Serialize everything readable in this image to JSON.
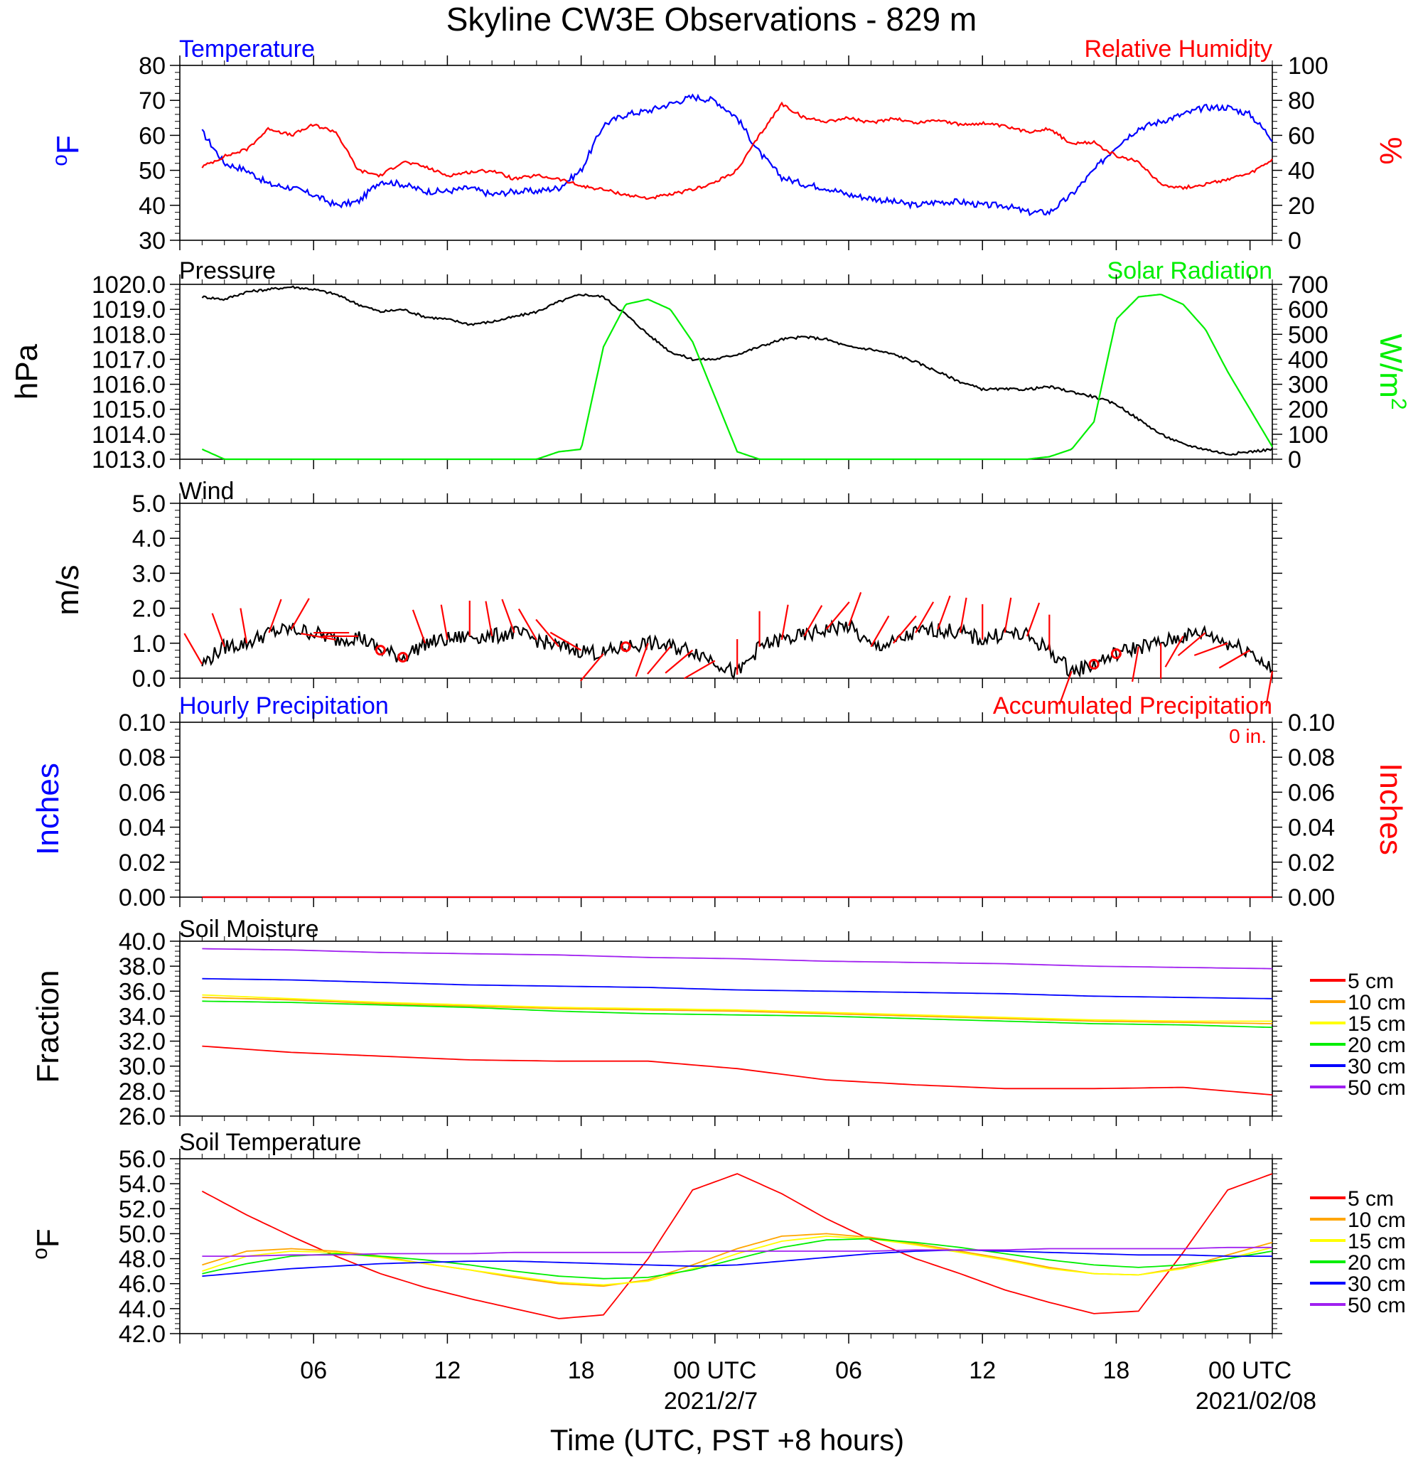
{
  "title": "Skyline CW3E Observations - 829 m",
  "x_axis": {
    "label": "Time (UTC, PST +8 hours)",
    "ticks": [
      "06",
      "12",
      "18",
      "00 UTC",
      "06",
      "12",
      "18",
      "00 UTC"
    ],
    "dates": [
      "2021/2/7",
      "2021/02/08"
    ]
  },
  "colors": {
    "blue": "#0000ff",
    "red": "#ff0000",
    "green": "#00ee00",
    "black": "#000000",
    "orange": "#ffa500",
    "yellow": "#ffff00",
    "purple": "#a020f0"
  },
  "accumulated_total": "0 in.",
  "chart_data": [
    {
      "id": "temp_rh",
      "type": "line",
      "title_left": "Temperature",
      "title_right": "Relative Humidity",
      "ylabel_left": "°F",
      "ylabel_right": "%",
      "ylim_left": [
        30,
        80
      ],
      "ylim_right": [
        0,
        100
      ],
      "yticks_left": [
        "30",
        "40",
        "50",
        "60",
        "70",
        "80"
      ],
      "yticks_right": [
        "0",
        "20",
        "40",
        "60",
        "80",
        "100"
      ],
      "x_hours": [
        1,
        2,
        3,
        4,
        5,
        6,
        7,
        8,
        9,
        10,
        11,
        12,
        13,
        14,
        15,
        16,
        17,
        18,
        19,
        20,
        21,
        22,
        23,
        24,
        25,
        26,
        27,
        28,
        29,
        30,
        31,
        32,
        33,
        34,
        35,
        36,
        37,
        38,
        39,
        40,
        41,
        42,
        43,
        44,
        45,
        46,
        47,
        48,
        49
      ],
      "series": [
        {
          "name": "Temperature",
          "axis": "left",
          "color": "#0000ff",
          "values": [
            61,
            52,
            50,
            46,
            45,
            43,
            40,
            41,
            47,
            46,
            44,
            44,
            45,
            43,
            44,
            44,
            45,
            50,
            63,
            66,
            67,
            69,
            71,
            70,
            65,
            55,
            48,
            46,
            45,
            43,
            42,
            41,
            40,
            41,
            41,
            40,
            40,
            38,
            38,
            43,
            50,
            57,
            62,
            64,
            66,
            68,
            68,
            66,
            59
          ]
        },
        {
          "name": "Relative Humidity",
          "axis": "right",
          "color": "#ff0000",
          "values": [
            42,
            48,
            52,
            64,
            60,
            66,
            62,
            40,
            37,
            45,
            42,
            37,
            39,
            40,
            35,
            37,
            35,
            31,
            29,
            26,
            24,
            26,
            29,
            33,
            40,
            60,
            78,
            70,
            68,
            70,
            67,
            70,
            67,
            69,
            66,
            67,
            65,
            62,
            64,
            55,
            56,
            48,
            45,
            32,
            30,
            32,
            35,
            38,
            46
          ]
        }
      ]
    },
    {
      "id": "pressure_solar",
      "type": "line",
      "title_left": "Pressure",
      "title_right": "Solar Radiation",
      "ylabel_left": "hPa",
      "ylabel_right": "W/m",
      "ylabel_right_sup": "2",
      "ylim_left": [
        1013,
        1020
      ],
      "ylim_right": [
        0,
        700
      ],
      "yticks_left": [
        "1013.0",
        "1014.0",
        "1015.0",
        "1016.0",
        "1017.0",
        "1018.0",
        "1019.0",
        "1020.0"
      ],
      "yticks_right": [
        "0",
        "100",
        "200",
        "300",
        "400",
        "500",
        "600",
        "700"
      ],
      "x_hours": [
        1,
        2,
        3,
        4,
        5,
        6,
        7,
        8,
        9,
        10,
        11,
        12,
        13,
        14,
        15,
        16,
        17,
        18,
        19,
        20,
        21,
        22,
        23,
        24,
        25,
        26,
        27,
        28,
        29,
        30,
        31,
        32,
        33,
        34,
        35,
        36,
        37,
        38,
        39,
        40,
        41,
        42,
        43,
        44,
        45,
        46,
        47,
        48,
        49
      ],
      "series": [
        {
          "name": "Pressure",
          "axis": "left",
          "color": "#000000",
          "values": [
            1019.5,
            1019.4,
            1019.7,
            1019.8,
            1019.9,
            1019.8,
            1019.6,
            1019.2,
            1018.9,
            1019.0,
            1018.7,
            1018.6,
            1018.4,
            1018.5,
            1018.7,
            1018.9,
            1019.3,
            1019.6,
            1019.5,
            1018.8,
            1018.0,
            1017.3,
            1017.0,
            1017.0,
            1017.2,
            1017.5,
            1017.8,
            1017.9,
            1017.8,
            1017.5,
            1017.4,
            1017.2,
            1016.9,
            1016.5,
            1016.1,
            1015.8,
            1015.8,
            1015.8,
            1015.9,
            1015.7,
            1015.5,
            1015.2,
            1014.6,
            1014.0,
            1013.6,
            1013.4,
            1013.2,
            1013.3,
            1013.4
          ]
        },
        {
          "name": "Solar Radiation",
          "axis": "right",
          "color": "#00ee00",
          "values": [
            40,
            0,
            0,
            0,
            0,
            0,
            0,
            0,
            0,
            0,
            0,
            0,
            0,
            0,
            0,
            0,
            30,
            40,
            450,
            620,
            640,
            600,
            470,
            250,
            30,
            0,
            0,
            0,
            0,
            0,
            0,
            0,
            0,
            0,
            0,
            0,
            0,
            0,
            10,
            40,
            150,
            560,
            650,
            660,
            620,
            520,
            350,
            200,
            50
          ]
        }
      ]
    },
    {
      "id": "wind",
      "type": "line",
      "title_left": "Wind",
      "ylabel_left": "m/s",
      "ylim_left": [
        0,
        5
      ],
      "yticks_left": [
        "0.0",
        "1.0",
        "2.0",
        "3.0",
        "4.0",
        "5.0"
      ],
      "x_hours": [
        1,
        2,
        3,
        4,
        5,
        6,
        7,
        8,
        9,
        10,
        11,
        12,
        13,
        14,
        15,
        16,
        17,
        18,
        19,
        20,
        21,
        22,
        23,
        24,
        25,
        26,
        27,
        28,
        29,
        30,
        31,
        32,
        33,
        34,
        35,
        36,
        37,
        38,
        39,
        40,
        41,
        42,
        43,
        44,
        45,
        46,
        47,
        48,
        49
      ],
      "series": [
        {
          "name": "Wind",
          "axis": "left",
          "color": "#000000",
          "values": [
            0.4,
            0.9,
            1.0,
            1.3,
            1.4,
            1.3,
            1.1,
            1.2,
            0.8,
            0.6,
            1.0,
            1.1,
            1.2,
            1.2,
            1.3,
            1.1,
            0.9,
            0.8,
            0.7,
            0.9,
            1.0,
            0.9,
            0.8,
            0.5,
            0.1,
            0.9,
            1.1,
            1.2,
            1.4,
            1.5,
            0.9,
            1.0,
            1.3,
            1.4,
            1.3,
            1.1,
            1.3,
            1.2,
            0.8,
            0.2,
            0.4,
            0.7,
            0.9,
            1.0,
            1.2,
            1.3,
            1.0,
            0.8,
            0.2
          ]
        }
      ],
      "calm_hours": [
        9,
        10,
        20,
        41,
        42
      ],
      "barb_direction_deg": [
        330,
        340,
        350,
        20,
        30,
        90,
        280,
        270,
        300,
        330,
        340,
        350,
        0,
        350,
        340,
        330,
        320,
        300,
        220,
        210,
        200,
        220,
        230,
        240,
        0,
        0,
        10,
        30,
        40,
        20,
        30,
        40,
        30,
        20,
        10,
        0,
        10,
        20,
        0,
        200,
        210,
        200,
        190,
        180,
        210,
        230,
        250,
        240,
        190
      ]
    },
    {
      "id": "precip",
      "type": "line",
      "title_left": "Hourly Precipitation",
      "title_right": "Accumulated Precipitation",
      "ylabel_left": "Inches",
      "ylabel_right": "Inches",
      "ylim_left": [
        0,
        0.1
      ],
      "ylim_right": [
        0,
        0.1
      ],
      "yticks_left": [
        "0.00",
        "0.02",
        "0.04",
        "0.06",
        "0.08",
        "0.10"
      ],
      "yticks_right": [
        "0.00",
        "0.02",
        "0.04",
        "0.06",
        "0.08",
        "0.10"
      ],
      "x_hours": [
        1,
        49
      ],
      "series": [
        {
          "name": "Hourly Precipitation",
          "axis": "left",
          "color": "#0000ff",
          "values": [
            0,
            0
          ]
        },
        {
          "name": "Accumulated Precipitation",
          "axis": "right",
          "color": "#ff0000",
          "values": [
            0,
            0
          ]
        }
      ]
    },
    {
      "id": "soil_moisture",
      "type": "line",
      "title_left": "Soil Moisture",
      "ylabel_left": "Fraction",
      "ylim_left": [
        26,
        40
      ],
      "yticks_left": [
        "26.0",
        "28.0",
        "30.0",
        "32.0",
        "34.0",
        "36.0",
        "38.0",
        "40.0"
      ],
      "x_hours": [
        1,
        5,
        9,
        13,
        17,
        21,
        25,
        29,
        33,
        37,
        41,
        45,
        49
      ],
      "series": [
        {
          "name": "5 cm",
          "color": "#ff0000",
          "values": [
            31.6,
            31.1,
            30.8,
            30.5,
            30.4,
            30.4,
            29.8,
            28.9,
            28.5,
            28.2,
            28.2,
            28.3,
            27.7
          ]
        },
        {
          "name": "10 cm",
          "color": "#ffa500",
          "values": [
            35.5,
            35.3,
            35.0,
            34.8,
            34.6,
            34.5,
            34.4,
            34.2,
            34.0,
            33.8,
            33.6,
            33.5,
            33.4
          ]
        },
        {
          "name": "15 cm",
          "color": "#ffff00",
          "values": [
            35.7,
            35.4,
            35.1,
            34.9,
            34.7,
            34.6,
            34.5,
            34.3,
            34.1,
            33.9,
            33.7,
            33.6,
            33.6
          ]
        },
        {
          "name": "20 cm",
          "color": "#00ee00",
          "values": [
            35.2,
            35.1,
            34.9,
            34.7,
            34.4,
            34.2,
            34.1,
            34.0,
            33.8,
            33.6,
            33.4,
            33.3,
            33.1
          ]
        },
        {
          "name": "30 cm",
          "color": "#0000ff",
          "values": [
            37.0,
            36.9,
            36.7,
            36.5,
            36.4,
            36.3,
            36.1,
            36.0,
            35.9,
            35.8,
            35.6,
            35.5,
            35.4
          ]
        },
        {
          "name": "50 cm",
          "color": "#a020f0",
          "values": [
            39.4,
            39.3,
            39.1,
            39.0,
            38.9,
            38.7,
            38.6,
            38.4,
            38.3,
            38.2,
            38.0,
            37.9,
            37.8
          ]
        }
      ]
    },
    {
      "id": "soil_temp",
      "type": "line",
      "title_left": "Soil Temperature",
      "ylabel_left": "°F",
      "ylim_left": [
        42,
        56
      ],
      "yticks_left": [
        "42.0",
        "44.0",
        "46.0",
        "48.0",
        "50.0",
        "52.0",
        "54.0",
        "56.0"
      ],
      "x_hours": [
        1,
        3,
        5,
        7,
        9,
        11,
        13,
        15,
        17,
        19,
        21,
        23,
        25,
        27,
        29,
        31,
        33,
        35,
        37,
        39,
        41,
        43,
        45,
        47,
        49
      ],
      "series": [
        {
          "name": "5 cm",
          "color": "#ff0000",
          "values": [
            53.4,
            51.5,
            49.8,
            48.2,
            46.8,
            45.7,
            44.8,
            44.0,
            43.2,
            43.5,
            48.0,
            53.5,
            54.8,
            53.2,
            51.2,
            49.5,
            48.0,
            46.8,
            45.5,
            44.5,
            43.6,
            43.8,
            48.5,
            53.5,
            54.8
          ]
        },
        {
          "name": "10 cm",
          "color": "#ffa500",
          "values": [
            47.5,
            48.6,
            48.8,
            48.6,
            48.2,
            47.6,
            47.1,
            46.5,
            46.0,
            45.8,
            46.3,
            47.5,
            48.8,
            49.8,
            50.0,
            49.7,
            49.2,
            48.6,
            48.0,
            47.3,
            46.8,
            46.7,
            47.3,
            48.3,
            49.3
          ]
        },
        {
          "name": "15 cm",
          "color": "#ffff00",
          "values": [
            47.0,
            48.2,
            48.6,
            48.5,
            48.1,
            47.6,
            47.1,
            46.6,
            46.1,
            45.9,
            46.2,
            47.2,
            48.4,
            49.4,
            49.8,
            49.6,
            49.1,
            48.5,
            47.9,
            47.2,
            46.8,
            46.7,
            47.2,
            48.0,
            48.9
          ]
        },
        {
          "name": "20 cm",
          "color": "#00ee00",
          "values": [
            46.8,
            47.6,
            48.2,
            48.4,
            48.2,
            47.9,
            47.5,
            47.0,
            46.6,
            46.4,
            46.5,
            47.1,
            48.0,
            48.9,
            49.5,
            49.6,
            49.3,
            48.9,
            48.4,
            47.9,
            47.5,
            47.3,
            47.5,
            48.0,
            48.6
          ]
        },
        {
          "name": "30 cm",
          "color": "#0000ff",
          "values": [
            46.6,
            46.9,
            47.2,
            47.4,
            47.6,
            47.7,
            47.8,
            47.8,
            47.7,
            47.6,
            47.5,
            47.4,
            47.5,
            47.8,
            48.1,
            48.4,
            48.6,
            48.7,
            48.6,
            48.5,
            48.4,
            48.3,
            48.3,
            48.2,
            48.2
          ]
        },
        {
          "name": "50 cm",
          "color": "#a020f0",
          "values": [
            48.2,
            48.2,
            48.3,
            48.3,
            48.4,
            48.4,
            48.4,
            48.5,
            48.5,
            48.5,
            48.5,
            48.6,
            48.6,
            48.6,
            48.6,
            48.6,
            48.7,
            48.7,
            48.7,
            48.8,
            48.8,
            48.8,
            48.8,
            48.9,
            48.9
          ]
        }
      ]
    }
  ]
}
